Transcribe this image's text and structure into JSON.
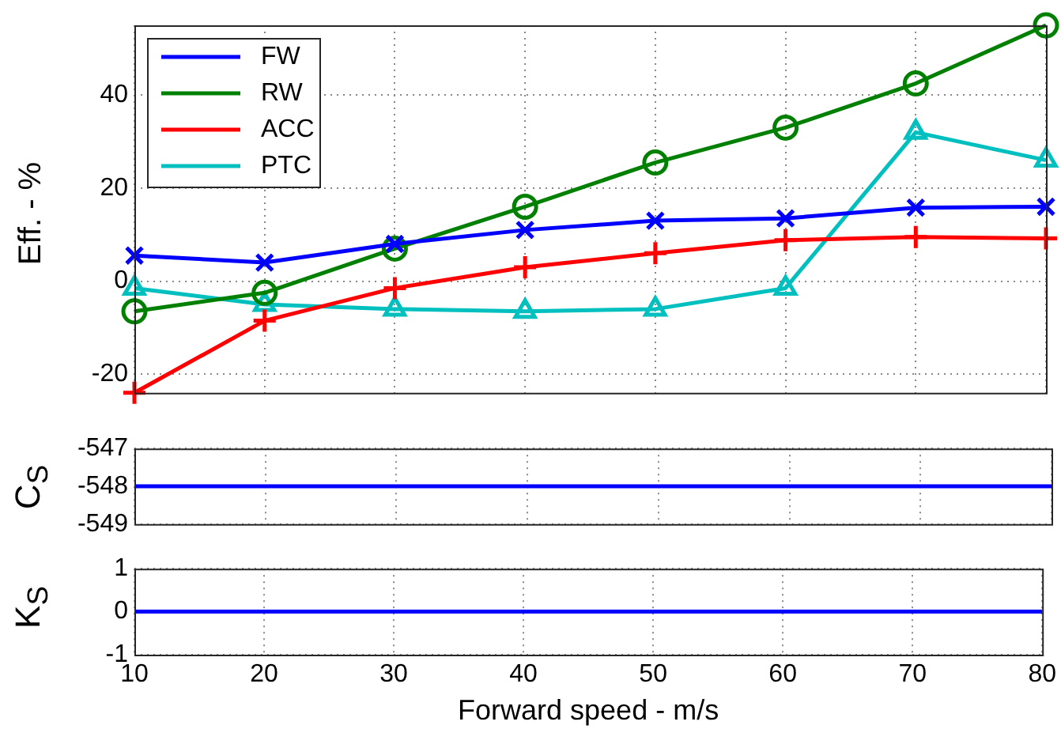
{
  "chart_data": [
    {
      "type": "line",
      "ylabel": "Eff. - %",
      "x": [
        10,
        20,
        30,
        40,
        50,
        60,
        70,
        80
      ],
      "xlim": [
        10,
        80
      ],
      "xticks": [
        10,
        20,
        30,
        40,
        50,
        60,
        70,
        80
      ],
      "ylim": [
        -24,
        55
      ],
      "yticks": [
        -20,
        0,
        20,
        40
      ],
      "grid": true,
      "legend": "top left",
      "tick_labels": "y",
      "series": [
        {
          "name": "FW",
          "color": "#0000ff",
          "marker": "cross",
          "values": [
            5.5,
            4,
            8,
            11,
            13,
            13.5,
            15.8,
            16
          ]
        },
        {
          "name": "RW",
          "color": "#008000",
          "marker": "circle",
          "values": [
            -6.5,
            -2.5,
            7,
            16,
            25.5,
            33,
            42.5,
            55
          ]
        },
        {
          "name": "ACC",
          "color": "#ff0000",
          "marker": "plus",
          "values": [
            -24,
            -8.5,
            -1.5,
            3,
            6,
            8.8,
            9.5,
            9.2
          ]
        },
        {
          "name": "PTC",
          "color": "#00bfbf",
          "marker": "triangle",
          "values": [
            -1.5,
            -5,
            -6,
            -6.5,
            -6,
            -1.5,
            32,
            26
          ]
        }
      ]
    },
    {
      "type": "line",
      "ylabel": "C$_{S}$",
      "x": [
        10,
        20,
        30,
        40,
        50,
        60,
        70,
        80
      ],
      "xlim": [
        10,
        80
      ],
      "xticks": [
        10,
        20,
        30,
        40,
        50,
        60,
        70,
        80
      ],
      "ylim": [
        -549,
        -547
      ],
      "yticks": [
        -549,
        -548,
        -547
      ],
      "grid": true,
      "tick_labels": "y",
      "marker": "none",
      "series": [
        {
          "color": "#0000ff",
          "values": [
            -548,
            -548,
            -548,
            -548,
            -548,
            -548,
            -548,
            -548
          ]
        }
      ]
    },
    {
      "type": "line",
      "ylabel": "K$_{S}$",
      "xlabel": "Forward speed - m/s",
      "x": [
        10,
        20,
        30,
        40,
        50,
        60,
        70,
        80
      ],
      "xlim": [
        10,
        80
      ],
      "xticks": [
        10,
        20,
        30,
        40,
        50,
        60,
        70,
        80
      ],
      "ylim": [
        -1,
        1
      ],
      "yticks": [
        -1,
        0,
        1
      ],
      "grid": true,
      "marker": "none",
      "series": [
        {
          "color": "#0000ff",
          "values": [
            0,
            0,
            0,
            0,
            0,
            0,
            0,
            0
          ]
        }
      ]
    }
  ]
}
